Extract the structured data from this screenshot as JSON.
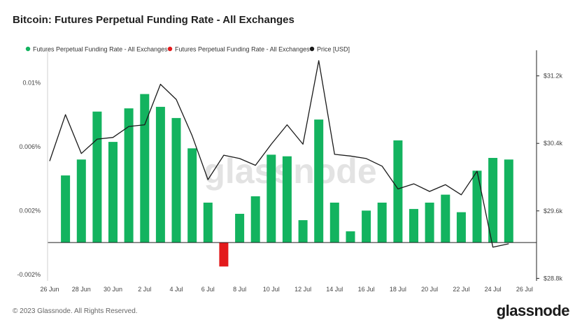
{
  "header": {
    "title": "Bitcoin: Futures Perpetual Funding Rate - All Exchanges"
  },
  "footer": {
    "copyright": "© 2023 Glassnode. All Rights Reserved.",
    "brand": "glassnode"
  },
  "watermark": "glassnode",
  "colors": {
    "positive": "#13b35f",
    "negative": "#e31a1c",
    "price": "#1a1a1a",
    "axis": "#222222"
  },
  "chart_data": {
    "type": "bar",
    "grid": false,
    "legend_position": "top-left",
    "legend": [
      {
        "label": "Futures Perpetual Funding Rate - All Exchanges",
        "color": "#13b35f"
      },
      {
        "label": "Futures Perpetual Funding Rate - All Exchanges",
        "color": "#e31a1c"
      },
      {
        "label": "Price [USD]",
        "color": "#1a1a1a"
      }
    ],
    "x_ticks": [
      "26 Jun",
      "28 Jun",
      "30 Jun",
      "2 Jul",
      "4 Jul",
      "6 Jul",
      "8 Jul",
      "10 Jul",
      "12 Jul",
      "14 Jul",
      "16 Jul",
      "18 Jul",
      "20 Jul",
      "22 Jul",
      "24 Jul",
      "26 Jul"
    ],
    "y_left": {
      "ticks": [
        "0.01%",
        "0.006%",
        "0.002%",
        "-0.002%"
      ],
      "tick_values": [
        0.01,
        0.006,
        0.002,
        -0.002
      ],
      "range": [
        -0.0024,
        0.0116
      ]
    },
    "y_right": {
      "ticks": [
        "$31.2k",
        "$30.4k",
        "$29.6k",
        "$28.8k"
      ],
      "tick_values": [
        31200,
        30400,
        29600,
        28800
      ],
      "range": [
        28770,
        31420
      ]
    },
    "funding_rate": [
      {
        "date": "2023-06-27",
        "value": 0.0042
      },
      {
        "date": "2023-06-28",
        "value": 0.0052
      },
      {
        "date": "2023-06-29",
        "value": 0.0082
      },
      {
        "date": "2023-06-30",
        "value": 0.0063
      },
      {
        "date": "2023-07-01",
        "value": 0.0084
      },
      {
        "date": "2023-07-02",
        "value": 0.0093
      },
      {
        "date": "2023-07-03",
        "value": 0.0085
      },
      {
        "date": "2023-07-04",
        "value": 0.0078
      },
      {
        "date": "2023-07-05",
        "value": 0.0059
      },
      {
        "date": "2023-07-06",
        "value": 0.0025
      },
      {
        "date": "2023-07-07",
        "value": -0.0015
      },
      {
        "date": "2023-07-08",
        "value": 0.0018
      },
      {
        "date": "2023-07-09",
        "value": 0.0029
      },
      {
        "date": "2023-07-10",
        "value": 0.0055
      },
      {
        "date": "2023-07-11",
        "value": 0.0054
      },
      {
        "date": "2023-07-12",
        "value": 0.0014
      },
      {
        "date": "2023-07-13",
        "value": 0.0077
      },
      {
        "date": "2023-07-14",
        "value": 0.0025
      },
      {
        "date": "2023-07-15",
        "value": 0.0007
      },
      {
        "date": "2023-07-16",
        "value": 0.002
      },
      {
        "date": "2023-07-17",
        "value": 0.0025
      },
      {
        "date": "2023-07-18",
        "value": 0.0064
      },
      {
        "date": "2023-07-19",
        "value": 0.0021
      },
      {
        "date": "2023-07-20",
        "value": 0.0025
      },
      {
        "date": "2023-07-21",
        "value": 0.003
      },
      {
        "date": "2023-07-22",
        "value": 0.0019
      },
      {
        "date": "2023-07-23",
        "value": 0.0045
      },
      {
        "date": "2023-07-24",
        "value": 0.0053
      },
      {
        "date": "2023-07-25",
        "value": 0.0052
      }
    ],
    "price": [
      {
        "date": "2023-06-26",
        "value": 30190
      },
      {
        "date": "2023-06-27",
        "value": 30740
      },
      {
        "date": "2023-06-28",
        "value": 30280
      },
      {
        "date": "2023-06-29",
        "value": 30450
      },
      {
        "date": "2023-06-30",
        "value": 30470
      },
      {
        "date": "2023-07-01",
        "value": 30600
      },
      {
        "date": "2023-07-02",
        "value": 30620
      },
      {
        "date": "2023-07-03",
        "value": 31100
      },
      {
        "date": "2023-07-04",
        "value": 30920
      },
      {
        "date": "2023-07-05",
        "value": 30490
      },
      {
        "date": "2023-07-06",
        "value": 29970
      },
      {
        "date": "2023-07-07",
        "value": 30260
      },
      {
        "date": "2023-07-08",
        "value": 30220
      },
      {
        "date": "2023-07-09",
        "value": 30140
      },
      {
        "date": "2023-07-10",
        "value": 30390
      },
      {
        "date": "2023-07-11",
        "value": 30620
      },
      {
        "date": "2023-07-12",
        "value": 30390
      },
      {
        "date": "2023-07-13",
        "value": 31380
      },
      {
        "date": "2023-07-14",
        "value": 30270
      },
      {
        "date": "2023-07-15",
        "value": 30250
      },
      {
        "date": "2023-07-16",
        "value": 30220
      },
      {
        "date": "2023-07-17",
        "value": 30130
      },
      {
        "date": "2023-07-18",
        "value": 29860
      },
      {
        "date": "2023-07-19",
        "value": 29920
      },
      {
        "date": "2023-07-20",
        "value": 29830
      },
      {
        "date": "2023-07-21",
        "value": 29910
      },
      {
        "date": "2023-07-22",
        "value": 29790
      },
      {
        "date": "2023-07-23",
        "value": 30070
      },
      {
        "date": "2023-07-24",
        "value": 29170
      },
      {
        "date": "2023-07-25",
        "value": 29210
      }
    ]
  }
}
